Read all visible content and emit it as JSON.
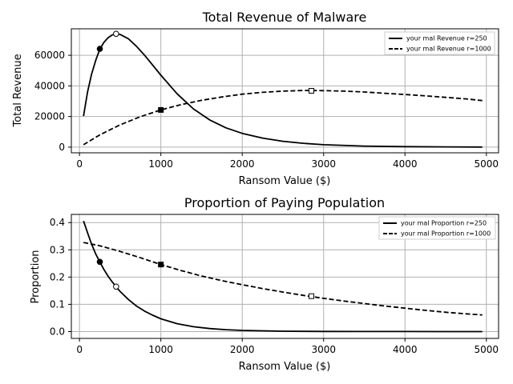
{
  "chart_data": [
    {
      "type": "line",
      "title": "Total Revenue of Malware",
      "xlabel": "Ransom Value ($)",
      "ylabel": "Total Revenue",
      "xlim": [
        -100,
        5150
      ],
      "ylim": [
        -3700,
        77300
      ],
      "xticks": [
        0,
        1000,
        2000,
        3000,
        4000,
        5000
      ],
      "yticks": [
        0,
        20000,
        40000,
        60000
      ],
      "xtick_labels": [
        "0",
        "1000",
        "2000",
        "3000",
        "4000",
        "5000"
      ],
      "ytick_labels": [
        "0",
        "20000",
        "40000",
        "60000"
      ],
      "grid": true,
      "legend_position": "top-right",
      "series": [
        {
          "name": "your mal Revenue r=250",
          "style": "solid",
          "x": [
            50,
            100,
            150,
            200,
            250,
            300,
            350,
            400,
            450,
            500,
            600,
            700,
            800,
            900,
            1000,
            1200,
            1400,
            1600,
            1800,
            2000,
            2250,
            2500,
            2750,
            3000,
            3500,
            4000,
            4500,
            4950
          ],
          "y": [
            20300,
            36200,
            48000,
            56800,
            63900,
            68400,
            71400,
            73200,
            74000,
            73600,
            70800,
            65900,
            60000,
            53600,
            47000,
            34800,
            25000,
            17800,
            12600,
            9000,
            5900,
            3800,
            2500,
            1600,
            700,
            300,
            150,
            50
          ]
        },
        {
          "name": "your mal Revenue r=1000",
          "style": "dashed",
          "x": [
            50,
            250,
            500,
            750,
            1000,
            1250,
            1500,
            1750,
            2000,
            2250,
            2500,
            2750,
            2850,
            3000,
            3250,
            3500,
            3750,
            4000,
            4250,
            4500,
            4750,
            4950
          ],
          "y": [
            1600,
            8000,
            14600,
            19900,
            24300,
            27800,
            30600,
            32800,
            34600,
            35800,
            36600,
            37000,
            37000,
            36900,
            36600,
            36000,
            35200,
            34400,
            33500,
            32500,
            31500,
            30400
          ]
        }
      ],
      "markers": [
        {
          "series": "your mal Revenue r=250",
          "x": 250,
          "y": 64200,
          "shape": "circle",
          "fill": "filled"
        },
        {
          "series": "your mal Revenue r=250",
          "x": 450,
          "y": 74000,
          "shape": "circle",
          "fill": "open"
        },
        {
          "series": "your mal Revenue r=1000",
          "x": 1000,
          "y": 24300,
          "shape": "square",
          "fill": "filled"
        },
        {
          "series": "your mal Revenue r=1000",
          "x": 2850,
          "y": 36800,
          "shape": "square",
          "fill": "open"
        }
      ]
    },
    {
      "type": "line",
      "title": "Proportion of Paying Population",
      "xlabel": "Ransom Value ($)",
      "ylabel": "Proportion",
      "xlim": [
        -100,
        5150
      ],
      "ylim": [
        -0.025,
        0.43
      ],
      "xticks": [
        0,
        1000,
        2000,
        3000,
        4000,
        5000
      ],
      "yticks": [
        0,
        0.1,
        0.2,
        0.3,
        0.4
      ],
      "xtick_labels": [
        "0",
        "1000",
        "2000",
        "3000",
        "4000",
        "5000"
      ],
      "ytick_labels": [
        "0.0",
        "0.1",
        "0.2",
        "0.3",
        "0.4"
      ],
      "grid": true,
      "legend_position": "top-right",
      "series": [
        {
          "name": "your mal Proportion r=250",
          "style": "solid",
          "x": [
            50,
            100,
            150,
            200,
            250,
            300,
            350,
            400,
            450,
            500,
            600,
            700,
            800,
            900,
            1000,
            1200,
            1400,
            1600,
            1800,
            2000,
            2500,
            3000,
            3500,
            4000,
            4500,
            4950
          ],
          "y": [
            0.406,
            0.362,
            0.32,
            0.284,
            0.256,
            0.228,
            0.204,
            0.183,
            0.165,
            0.147,
            0.118,
            0.094,
            0.075,
            0.06,
            0.047,
            0.029,
            0.018,
            0.011,
            0.007,
            0.0045,
            0.0015,
            0.0005,
            0.0002,
            0.0001,
            0.0,
            0.0
          ]
        },
        {
          "name": "your mal Proportion r=1000",
          "style": "dashed",
          "x": [
            50,
            250,
            500,
            750,
            1000,
            1250,
            1500,
            1750,
            2000,
            2250,
            2500,
            2750,
            3000,
            3250,
            3500,
            3750,
            4000,
            4250,
            4500,
            4750,
            4950
          ],
          "y": [
            0.327,
            0.315,
            0.294,
            0.271,
            0.246,
            0.224,
            0.204,
            0.187,
            0.172,
            0.158,
            0.145,
            0.133,
            0.122,
            0.112,
            0.103,
            0.094,
            0.086,
            0.078,
            0.071,
            0.065,
            0.061
          ]
        }
      ],
      "markers": [
        {
          "series": "your mal Proportion r=250",
          "x": 250,
          "y": 0.256,
          "shape": "circle",
          "fill": "filled"
        },
        {
          "series": "your mal Proportion r=250",
          "x": 450,
          "y": 0.165,
          "shape": "circle",
          "fill": "open"
        },
        {
          "series": "your mal Proportion r=1000",
          "x": 1000,
          "y": 0.246,
          "shape": "square",
          "fill": "filled"
        },
        {
          "series": "your mal Proportion r=1000",
          "x": 2850,
          "y": 0.13,
          "shape": "square",
          "fill": "open"
        }
      ]
    }
  ]
}
